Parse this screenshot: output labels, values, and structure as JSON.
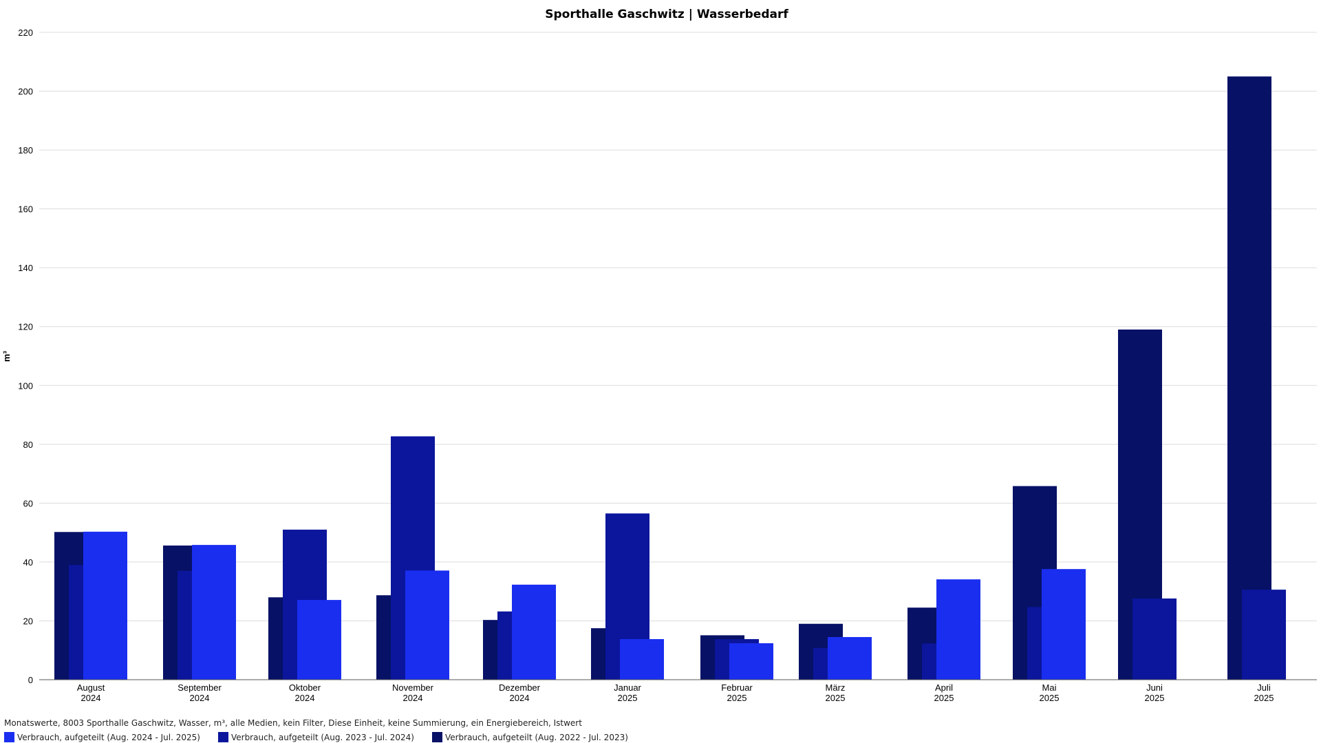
{
  "colors": {
    "series_current": "#1a2ef0",
    "series_prev": "#0b169c",
    "series_prevprev": "#071166",
    "grid": "#dcdcdc",
    "axis": "#555555"
  },
  "footer_text": "Monatswerte, 8003 Sporthalle Gaschwitz, Wasser, m³, alle Medien, kein Filter, Diese Einheit, keine Summierung, ein Energiebereich, Istwert",
  "chart_data": {
    "type": "bar",
    "title": "Sporthalle Gaschwitz | Wasserbedarf",
    "ylabel": "m³",
    "ylim": [
      0,
      220
    ],
    "yticks": [
      0,
      20,
      40,
      60,
      80,
      100,
      120,
      140,
      160,
      180,
      200,
      220
    ],
    "grid": true,
    "legend_position": "bottom-left",
    "categories": [
      [
        "August",
        "2024"
      ],
      [
        "September",
        "2024"
      ],
      [
        "Oktober",
        "2024"
      ],
      [
        "November",
        "2024"
      ],
      [
        "Dezember",
        "2024"
      ],
      [
        "Januar",
        "2025"
      ],
      [
        "Februar",
        "2025"
      ],
      [
        "März",
        "2025"
      ],
      [
        "April",
        "2025"
      ],
      [
        "Mai",
        "2025"
      ],
      [
        "Juni",
        "2025"
      ],
      [
        "Juli",
        "2025"
      ]
    ],
    "series": [
      {
        "name": "Verbrauch, aufgeteilt (Aug. 2022 - Jul. 2023)",
        "color_key": "series_prevprev",
        "values": [
          50.2,
          45.6,
          28,
          28.7,
          20.3,
          17.5,
          15.1,
          19.0,
          24.5,
          65.8,
          119.0,
          205.0
        ]
      },
      {
        "name": "Verbrauch, aufgeteilt (Aug. 2023 - Jul. 2024)",
        "color_key": "series_prev",
        "values": [
          39,
          37,
          51.0,
          82.7,
          23.2,
          56.5,
          13.8,
          10.8,
          12.3,
          24.7,
          27.6,
          30.6
        ]
      },
      {
        "name": "Verbrauch, aufgeteilt (Aug. 2024 - Jul. 2025)",
        "color_key": "series_current",
        "values": [
          50.3,
          45.8,
          27.1,
          37.1,
          32.3,
          13.8,
          12.4,
          14.5,
          34.1,
          37.6,
          null,
          null
        ]
      }
    ],
    "legend": [
      {
        "label": "Verbrauch, aufgeteilt (Aug. 2024 - Jul. 2025)",
        "color_key": "series_current"
      },
      {
        "label": "Verbrauch, aufgeteilt (Aug. 2023 - Jul. 2024)",
        "color_key": "series_prev"
      },
      {
        "label": "Verbrauch, aufgeteilt (Aug. 2022 - Jul. 2023)",
        "color_key": "series_prevprev"
      }
    ]
  }
}
